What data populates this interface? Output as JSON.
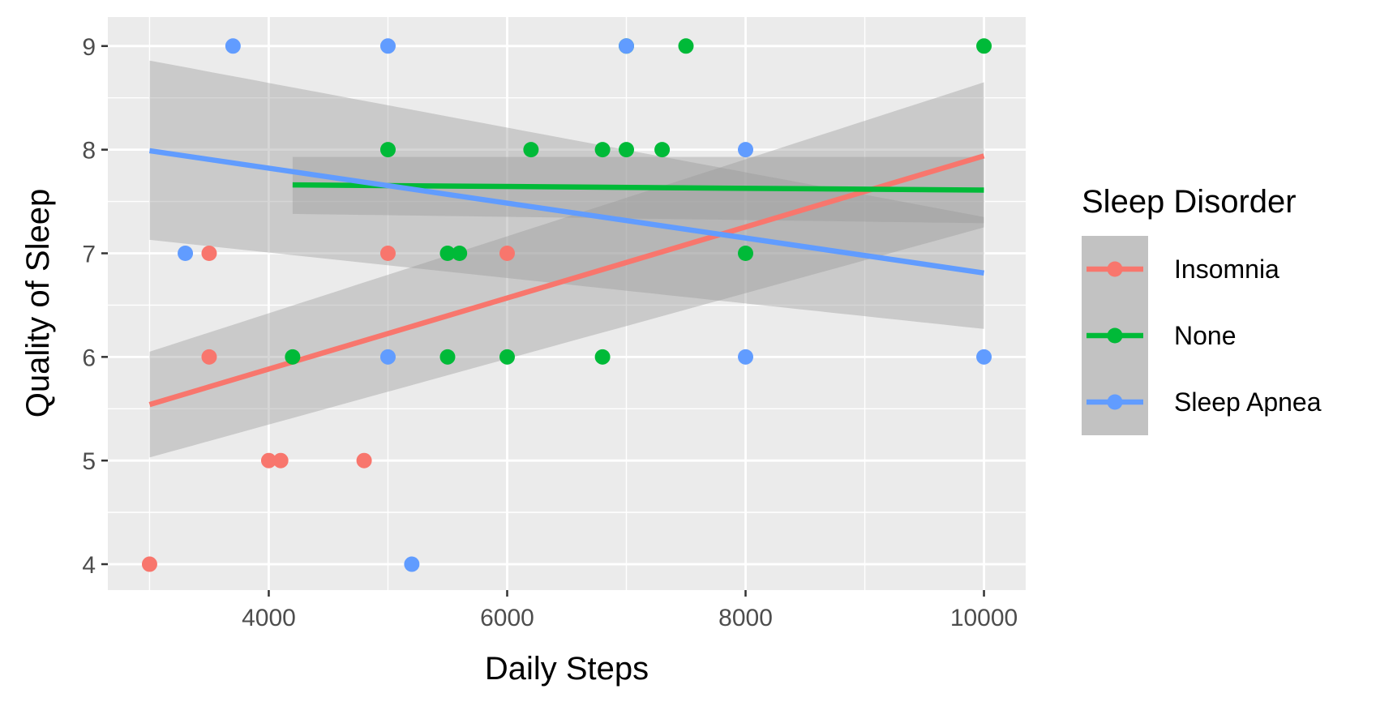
{
  "chart_data": {
    "type": "scatter",
    "title": "",
    "xlabel": "Daily Steps",
    "ylabel": "Quality of Sleep",
    "xlim": [
      2650,
      10350
    ],
    "ylim": [
      3.75,
      9.28
    ],
    "x_ticks": [
      4000,
      6000,
      8000,
      10000
    ],
    "y_ticks": [
      4,
      5,
      6,
      7,
      8,
      9
    ],
    "grid": true,
    "legend_placement": "right",
    "legend_title": "Sleep Disorder",
    "panel_background": "#ebebeb",
    "band_color": "#999999",
    "series": [
      {
        "name": "Insomnia",
        "color": "#F8766D",
        "points": [
          [
            3000,
            4
          ],
          [
            3500,
            7
          ],
          [
            3500,
            6
          ],
          [
            4000,
            5
          ],
          [
            4100,
            5
          ],
          [
            4800,
            5
          ],
          [
            5000,
            7
          ],
          [
            6000,
            7
          ]
        ],
        "trend": {
          "x": [
            3000,
            10000
          ],
          "y": [
            5.54,
            7.94
          ]
        },
        "band": {
          "x": [
            3000,
            10000
          ],
          "upper": [
            6.05,
            8.65
          ],
          "lower": [
            5.03,
            7.25
          ]
        }
      },
      {
        "name": "None",
        "color": "#00BA38",
        "points": [
          [
            4200,
            6
          ],
          [
            5000,
            8
          ],
          [
            5500,
            7
          ],
          [
            5600,
            7
          ],
          [
            5500,
            6
          ],
          [
            6000,
            6
          ],
          [
            6200,
            8
          ],
          [
            6800,
            8
          ],
          [
            6800,
            6
          ],
          [
            7000,
            8
          ],
          [
            7000,
            9
          ],
          [
            7300,
            8
          ],
          [
            7500,
            9
          ],
          [
            8000,
            7
          ],
          [
            10000,
            9
          ]
        ],
        "trend": {
          "x": [
            4200,
            10000
          ],
          "y": [
            7.66,
            7.61
          ]
        },
        "band": {
          "x": [
            4200,
            10000
          ],
          "upper": [
            7.93,
            7.93
          ],
          "lower": [
            7.38,
            7.29
          ]
        }
      },
      {
        "name": "Sleep Apnea",
        "color": "#619CFF",
        "points": [
          [
            3300,
            7
          ],
          [
            3700,
            9
          ],
          [
            5000,
            9
          ],
          [
            5000,
            6
          ],
          [
            5200,
            4
          ],
          [
            7000,
            9
          ],
          [
            8000,
            8
          ],
          [
            8000,
            6
          ],
          [
            10000,
            6
          ]
        ],
        "trend": {
          "x": [
            3000,
            10000
          ],
          "y": [
            7.99,
            6.81
          ]
        },
        "band": {
          "x": [
            3000,
            10000
          ],
          "upper": [
            8.86,
            7.35
          ],
          "lower": [
            7.13,
            6.27
          ]
        }
      }
    ]
  }
}
